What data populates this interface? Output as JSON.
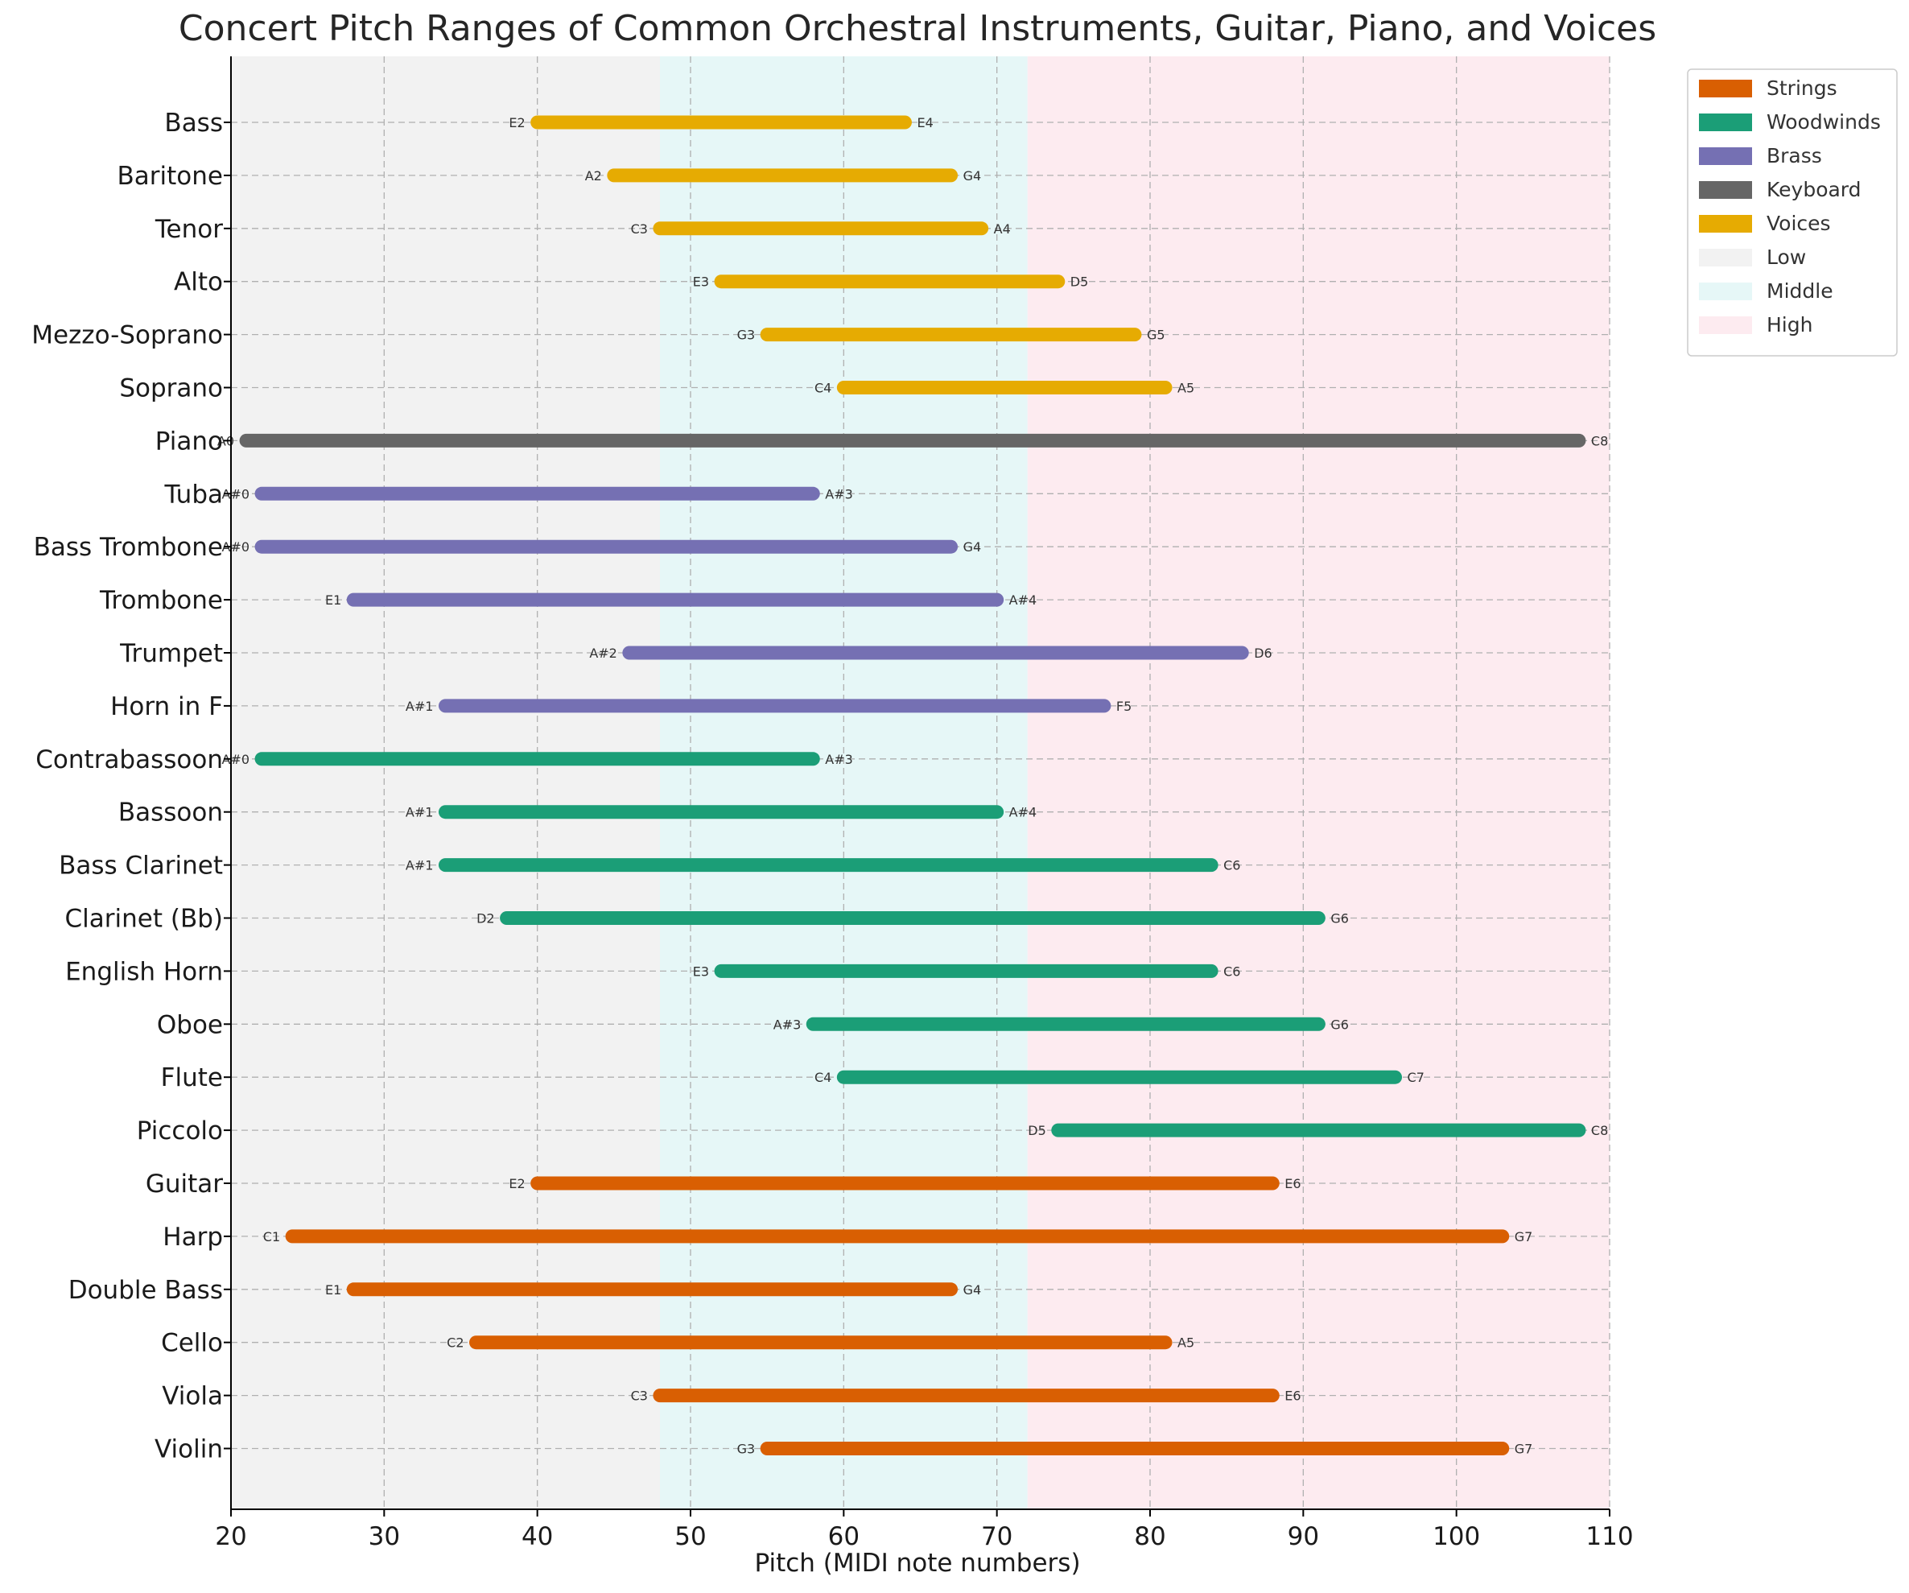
{
  "chart_data": {
    "type": "bar",
    "title": "Concert Pitch Ranges of Common Orchestral Instruments, Guitar, Piano, and Voices",
    "xlabel": "Pitch (MIDI note numbers)",
    "ylabel": "",
    "xlim": [
      20,
      110
    ],
    "x_ticks": [
      20,
      30,
      40,
      50,
      60,
      70,
      80,
      90,
      100,
      110
    ],
    "grid": true,
    "legend_position": "outside-top-right",
    "regions": [
      {
        "name": "Low",
        "from": 20,
        "to": 48,
        "color": "#f2f2f2"
      },
      {
        "name": "Middle",
        "from": 48,
        "to": 72,
        "color": "#e6f7f7"
      },
      {
        "name": "High",
        "from": 72,
        "to": 110,
        "color": "#fdebf0"
      }
    ],
    "groups": [
      {
        "name": "Strings",
        "color": "#d95f02"
      },
      {
        "name": "Woodwinds",
        "color": "#1b9e77"
      },
      {
        "name": "Brass",
        "color": "#7570b3"
      },
      {
        "name": "Keyboard",
        "color": "#666666"
      },
      {
        "name": "Voices",
        "color": "#e6ab02"
      }
    ],
    "instruments": [
      {
        "name": "Violin",
        "group": "Strings",
        "low": 55,
        "high": 103,
        "low_note": "G3",
        "high_note": "G7"
      },
      {
        "name": "Viola",
        "group": "Strings",
        "low": 48,
        "high": 88,
        "low_note": "C3",
        "high_note": "E6"
      },
      {
        "name": "Cello",
        "group": "Strings",
        "low": 36,
        "high": 81,
        "low_note": "C2",
        "high_note": "A5"
      },
      {
        "name": "Double Bass",
        "group": "Strings",
        "low": 28,
        "high": 67,
        "low_note": "E1",
        "high_note": "G4"
      },
      {
        "name": "Harp",
        "group": "Strings",
        "low": 24,
        "high": 103,
        "low_note": "C1",
        "high_note": "G7"
      },
      {
        "name": "Guitar",
        "group": "Strings",
        "low": 40,
        "high": 88,
        "low_note": "E2",
        "high_note": "E6"
      },
      {
        "name": "Piccolo",
        "group": "Woodwinds",
        "low": 74,
        "high": 108,
        "low_note": "D5",
        "high_note": "C8"
      },
      {
        "name": "Flute",
        "group": "Woodwinds",
        "low": 60,
        "high": 96,
        "low_note": "C4",
        "high_note": "C7"
      },
      {
        "name": "Oboe",
        "group": "Woodwinds",
        "low": 58,
        "high": 91,
        "low_note": "A#3",
        "high_note": "G6"
      },
      {
        "name": "English Horn",
        "group": "Woodwinds",
        "low": 52,
        "high": 84,
        "low_note": "E3",
        "high_note": "C6"
      },
      {
        "name": "Clarinet (Bb)",
        "group": "Woodwinds",
        "low": 38,
        "high": 91,
        "low_note": "D2",
        "high_note": "G6"
      },
      {
        "name": "Bass Clarinet",
        "group": "Woodwinds",
        "low": 34,
        "high": 84,
        "low_note": "A#1",
        "high_note": "C6"
      },
      {
        "name": "Bassoon",
        "group": "Woodwinds",
        "low": 34,
        "high": 70,
        "low_note": "A#1",
        "high_note": "A#4"
      },
      {
        "name": "Contrabassoon",
        "group": "Woodwinds",
        "low": 22,
        "high": 58,
        "low_note": "A#0",
        "high_note": "A#3"
      },
      {
        "name": "Horn in F",
        "group": "Brass",
        "low": 34,
        "high": 77,
        "low_note": "A#1",
        "high_note": "F5"
      },
      {
        "name": "Trumpet",
        "group": "Brass",
        "low": 46,
        "high": 86,
        "low_note": "A#2",
        "high_note": "D6"
      },
      {
        "name": "Trombone",
        "group": "Brass",
        "low": 28,
        "high": 70,
        "low_note": "E1",
        "high_note": "A#4"
      },
      {
        "name": "Bass Trombone",
        "group": "Brass",
        "low": 22,
        "high": 67,
        "low_note": "A#0",
        "high_note": "G4"
      },
      {
        "name": "Tuba",
        "group": "Brass",
        "low": 22,
        "high": 58,
        "low_note": "A#0",
        "high_note": "A#3"
      },
      {
        "name": "Piano",
        "group": "Keyboard",
        "low": 21,
        "high": 108,
        "low_note": "A0",
        "high_note": "C8"
      },
      {
        "name": "Soprano",
        "group": "Voices",
        "low": 60,
        "high": 81,
        "low_note": "C4",
        "high_note": "A5"
      },
      {
        "name": "Mezzo-Soprano",
        "group": "Voices",
        "low": 55,
        "high": 79,
        "low_note": "G3",
        "high_note": "G5"
      },
      {
        "name": "Alto",
        "group": "Voices",
        "low": 52,
        "high": 74,
        "low_note": "E3",
        "high_note": "D5"
      },
      {
        "name": "Tenor",
        "group": "Voices",
        "low": 48,
        "high": 69,
        "low_note": "C3",
        "high_note": "A4"
      },
      {
        "name": "Baritone",
        "group": "Voices",
        "low": 45,
        "high": 67,
        "low_note": "A2",
        "high_note": "G4"
      },
      {
        "name": "Bass",
        "group": "Voices",
        "low": 40,
        "high": 64,
        "low_note": "E2",
        "high_note": "E4"
      }
    ]
  }
}
